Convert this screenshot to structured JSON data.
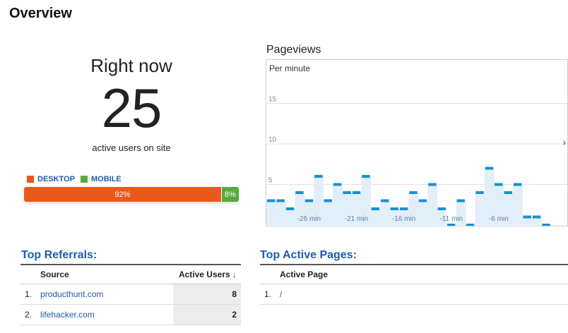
{
  "page": {
    "title": "Overview"
  },
  "right_now": {
    "heading": "Right now",
    "count": "25",
    "subtitle": "active users on site"
  },
  "devices": {
    "legend": [
      {
        "label": "DESKTOP",
        "color": "#e8591a"
      },
      {
        "label": "MOBILE",
        "color": "#5aa83c"
      }
    ],
    "desktop_percent": 92,
    "desktop_label": "92%",
    "mobile_percent": 8,
    "mobile_label": "8%"
  },
  "pageviews": {
    "title": "Pageviews",
    "per_minute_label": "Per minute",
    "next_icon": "chevron-right-icon"
  },
  "chart_data": {
    "type": "area",
    "title": "Pageviews",
    "subtitle": "Per minute",
    "ylim": [
      0,
      20
    ],
    "yticks": [
      5,
      10,
      15
    ],
    "x": [
      -30,
      -29,
      -28,
      -27,
      -26,
      -25,
      -24,
      -23,
      -22,
      -21,
      -20,
      -19,
      -18,
      -17,
      -16,
      -15,
      -14,
      -13,
      -12,
      -11,
      -10,
      -9,
      -8,
      -7,
      -6,
      -5,
      -4,
      -3,
      -2,
      -1
    ],
    "xticks": [
      "-26 min",
      "-21 min",
      "-16 min",
      "-11 min",
      "-6 min"
    ],
    "values": [
      3,
      3,
      2,
      4,
      3,
      6,
      3,
      5,
      4,
      4,
      6,
      2,
      3,
      2,
      2,
      4,
      3,
      5,
      2,
      0,
      3,
      0,
      4,
      7,
      5,
      4,
      5,
      1,
      1,
      0
    ],
    "colors": {
      "line": "#1a8fd1",
      "fill": "#e3eff8",
      "grid": "#e2e2e2"
    }
  },
  "referrals": {
    "title": "Top Referrals:",
    "headers": {
      "source": "Source",
      "users": "Active Users",
      "sort_icon": "arrow-down-icon"
    },
    "rows": [
      {
        "num": "1.",
        "source": "producthunt.com",
        "users": "8"
      },
      {
        "num": "2.",
        "source": "lifehacker.com",
        "users": "2"
      }
    ]
  },
  "active_pages": {
    "title": "Top Active Pages:",
    "headers": {
      "page": "Active Page"
    },
    "rows": [
      {
        "num": "1.",
        "page": "/"
      }
    ]
  }
}
